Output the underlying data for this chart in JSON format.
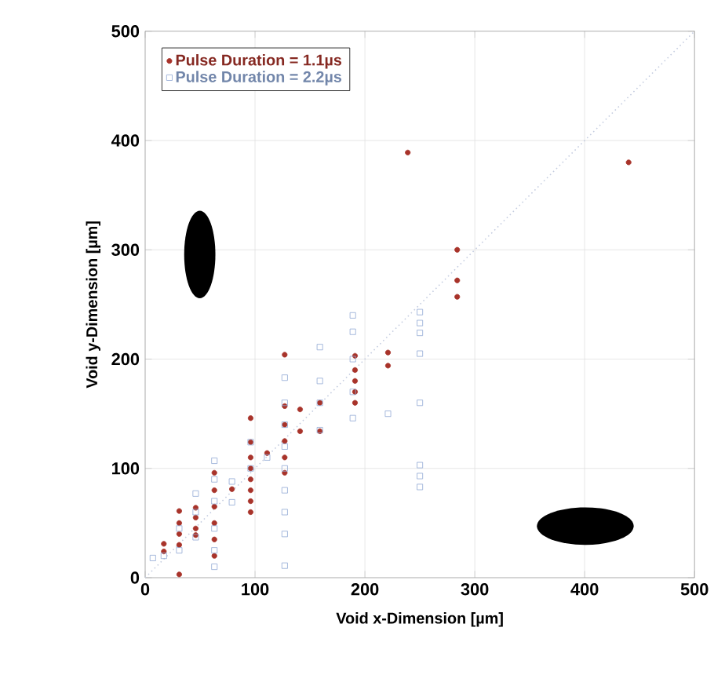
{
  "chart_data": {
    "type": "scatter",
    "xlabel": "Void x-Dimension [µm]",
    "ylabel": "Void y-Dimension [µm]",
    "xlim": [
      0,
      500
    ],
    "ylim": [
      0,
      500
    ],
    "xticks": [
      0,
      100,
      200,
      300,
      400,
      500
    ],
    "yticks": [
      0,
      100,
      200,
      300,
      400,
      500
    ],
    "grid": true,
    "legend": "top left",
    "series": [
      {
        "name": "Pulse Duration = 1.1µs",
        "color": "#a8332a",
        "marker": "circle",
        "x": [
          17,
          17,
          31,
          31,
          31,
          31,
          31,
          46,
          46,
          46,
          46,
          63,
          63,
          63,
          63,
          63,
          63,
          79,
          96,
          96,
          96,
          96,
          96,
          96,
          96,
          96,
          111,
          127,
          127,
          127,
          127,
          127,
          127,
          141,
          141,
          159,
          159,
          191,
          191,
          191,
          191,
          191,
          221,
          221,
          239,
          284,
          284,
          284,
          440
        ],
        "values": [
          31,
          24,
          61,
          50,
          40,
          30,
          3,
          64,
          55,
          45,
          39,
          96,
          80,
          65,
          50,
          35,
          20,
          81,
          146,
          124,
          110,
          100,
          90,
          80,
          70,
          60,
          114,
          204,
          157,
          140,
          125,
          110,
          96,
          154,
          134,
          160,
          134,
          203,
          190,
          180,
          170,
          160,
          206,
          194,
          389,
          300,
          272,
          257,
          380
        ]
      },
      {
        "name": "Pulse Duration = 2.2µs",
        "color": "#8fa8d4",
        "marker": "square",
        "x": [
          7,
          17,
          31,
          31,
          46,
          46,
          46,
          63,
          63,
          63,
          63,
          63,
          63,
          79,
          79,
          96,
          96,
          111,
          127,
          127,
          127,
          127,
          127,
          127,
          127,
          127,
          127,
          159,
          159,
          159,
          159,
          189,
          189,
          189,
          189,
          189,
          221,
          250,
          250,
          250,
          250,
          250,
          250,
          250,
          250
        ],
        "values": [
          18,
          20,
          25,
          45,
          77,
          60,
          37,
          107,
          90,
          70,
          45,
          25,
          10,
          88,
          69,
          124,
          100,
          110,
          183,
          160,
          140,
          120,
          100,
          80,
          60,
          40,
          11,
          211,
          180,
          160,
          135,
          240,
          225,
          200,
          170,
          146,
          150,
          243,
          233,
          224,
          205,
          160,
          103,
          93,
          83
        ]
      },
      {
        "type": "line",
        "color": "#c5cde0",
        "marker": "none",
        "line_style": "dotted",
        "x": [
          0,
          500
        ],
        "values": [
          0,
          500
        ]
      }
    ]
  }
}
